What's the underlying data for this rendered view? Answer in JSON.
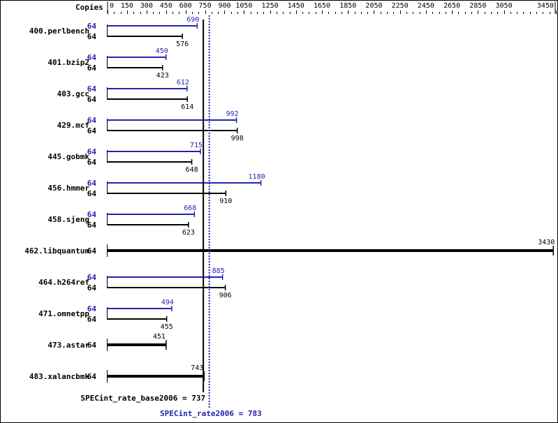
{
  "chart_data": {
    "type": "bar",
    "orientation": "horizontal",
    "axis_header": "Copies",
    "xlim": [
      0,
      3450
    ],
    "tick_labels": [
      "0",
      "150",
      "300",
      "450",
      "600",
      "750",
      "900",
      "1050",
      "1250",
      "1450",
      "1650",
      "1850",
      "2050",
      "2250",
      "2450",
      "2650",
      "2850",
      "3050",
      "3450"
    ],
    "minor_tick_step": 50,
    "colors": {
      "base": "#000000",
      "peak": "#2323b0"
    },
    "categories": [
      "400.perlbench",
      "401.bzip2",
      "403.gcc",
      "429.mcf",
      "445.gobmk",
      "456.hmmer",
      "458.sjeng",
      "462.libquantum",
      "464.h264ref",
      "471.omnetpp",
      "473.astar",
      "483.xalancbmk"
    ],
    "copies": [
      "64",
      "64",
      "64",
      "64",
      "64",
      "64",
      "64",
      "64",
      "64",
      "64",
      "64",
      "64"
    ],
    "series": [
      {
        "key": "peak",
        "values": [
          690,
          450,
          612,
          992,
          715,
          1180,
          668,
          null,
          885,
          494,
          null,
          null
        ]
      },
      {
        "key": "base",
        "values": [
          576,
          423,
          614,
          998,
          648,
          910,
          623,
          3430,
          906,
          455,
          451,
          743
        ]
      }
    ],
    "reference_lines": [
      {
        "key": "base",
        "label": "SPECint_rate_base2006 = 737",
        "value": 737,
        "style": "solid"
      },
      {
        "key": "peak",
        "label": "SPECint_rate2006 = 783",
        "value": 783,
        "style": "dotted"
      }
    ]
  }
}
